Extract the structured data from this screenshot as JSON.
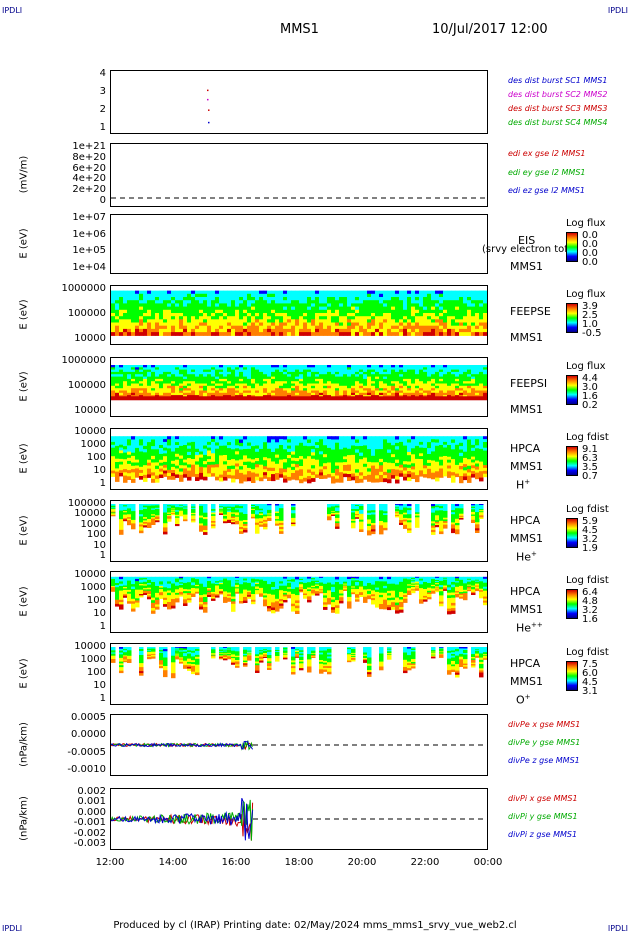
{
  "corners": {
    "tl": "IPDLI",
    "tr": "IPDLI",
    "bl": "IPDLI",
    "br": "IPDLI"
  },
  "header": {
    "mission": "MMS1",
    "datetime": "10/Jul/2017 12:00"
  },
  "footer": "Produced by cl (IRAP)   Printing date: 02/May/2024   mms_mms1_srvy_vue_web2.cl",
  "xaxis": {
    "ticks": [
      "12:00",
      "14:00",
      "16:00",
      "18:00",
      "20:00",
      "22:00",
      "00:00"
    ]
  },
  "panels": [
    {
      "id": "p1",
      "ylabel": "",
      "yticks": [
        "4",
        "3",
        "2",
        "1"
      ],
      "labels": [
        {
          "text": "des dist burst SC1 MMS1",
          "color": "#0000cc"
        },
        {
          "text": "des dist burst SC2 MMS2",
          "color": "#cc00cc"
        },
        {
          "text": "des dist burst SC3 MMS3",
          "color": "#cc0000"
        },
        {
          "text": "des dist burst SC4 MMS4",
          "color": "#00aa00"
        }
      ]
    },
    {
      "id": "p2",
      "ylabel": "(mV/m)",
      "yticks": [
        "1e+21",
        "8e+20",
        "6e+20",
        "4e+20",
        "2e+20",
        "0"
      ],
      "labels": [
        {
          "text": "edi ex gse l2 MMS1",
          "color": "#cc0000"
        },
        {
          "text": "edi ey gse l2 MMS1",
          "color": "#00aa00"
        },
        {
          "text": "edi ez gse l2 MMS1",
          "color": "#0000cc"
        }
      ]
    },
    {
      "id": "p3",
      "ylabel": "E (eV)",
      "yticks": [
        "1e+07",
        "1e+06",
        "1e+05",
        "1e+04"
      ],
      "inst": [
        "EIS",
        "MMS1"
      ],
      "extra": "(srvy electron tof)",
      "cbtitle": "Log flux",
      "cbvals": [
        "0.0",
        "0.0",
        "0.0",
        "0.0"
      ]
    },
    {
      "id": "p4",
      "ylabel": "E (eV)",
      "yticks": [
        "1000000",
        "100000",
        "10000"
      ],
      "inst": [
        "FEEPSE",
        "MMS1"
      ],
      "cbtitle": "Log flux",
      "cbvals": [
        "3.9",
        "2.5",
        "1.0",
        "-0.5"
      ]
    },
    {
      "id": "p5",
      "ylabel": "E (eV)",
      "yticks": [
        "1000000",
        "100000",
        "10000"
      ],
      "inst": [
        "FEEPSI",
        "MMS1"
      ],
      "cbtitle": "Log flux",
      "cbvals": [
        "4.4",
        "3.0",
        "1.6",
        "0.2"
      ]
    },
    {
      "id": "p6",
      "ylabel": "E (eV)",
      "yticks": [
        "10000",
        "1000",
        "100",
        "10",
        "1"
      ],
      "inst": [
        "HPCA",
        "MMS1",
        "H+"
      ],
      "cbtitle": "Log fdist",
      "cbvals": [
        "9.1",
        "6.3",
        "3.5",
        "0.7"
      ]
    },
    {
      "id": "p7",
      "ylabel": "E (eV)",
      "yticks": [
        "100000",
        "10000",
        "1000",
        "100",
        "10",
        "1"
      ],
      "inst": [
        "HPCA",
        "MMS1",
        "He+"
      ],
      "cbtitle": "Log fdist",
      "cbvals": [
        "5.9",
        "4.5",
        "3.2",
        "1.9"
      ]
    },
    {
      "id": "p8",
      "ylabel": "E (eV)",
      "yticks": [
        "10000",
        "1000",
        "100",
        "10",
        "1"
      ],
      "inst": [
        "HPCA",
        "MMS1",
        "He++"
      ],
      "cbtitle": "Log fdist",
      "cbvals": [
        "6.4",
        "4.8",
        "3.2",
        "1.6"
      ]
    },
    {
      "id": "p9",
      "ylabel": "E (eV)",
      "yticks": [
        "10000",
        "1000",
        "100",
        "10",
        "1"
      ],
      "inst": [
        "HPCA",
        "MMS1",
        "O+"
      ],
      "cbtitle": "Log fdist",
      "cbvals": [
        "7.5",
        "6.0",
        "4.5",
        "3.1"
      ]
    },
    {
      "id": "p10",
      "ylabel": "(nPa/km)",
      "yticks": [
        "0.0005",
        "0.0000",
        "-0.0005",
        "-0.0010"
      ],
      "labels": [
        {
          "text": "divPe x gse MMS1",
          "color": "#cc0000"
        },
        {
          "text": "divPe y gse MMS1",
          "color": "#00aa00"
        },
        {
          "text": "divPe z gse MMS1",
          "color": "#0000cc"
        }
      ]
    },
    {
      "id": "p11",
      "ylabel": "(nPa/km)",
      "yticks": [
        "0.002",
        "0.001",
        "0.000",
        "-0.001",
        "-0.002",
        "-0.003"
      ],
      "labels": [
        {
          "text": "divPi x gse MMS1",
          "color": "#cc0000"
        },
        {
          "text": "divPi y gse MMS1",
          "color": "#00aa00"
        },
        {
          "text": "divPi z gse MMS1",
          "color": "#0000cc"
        }
      ]
    }
  ],
  "chart_data": {
    "type": "heatmap",
    "title": "MMS1",
    "time_range": [
      "10/Jul/2017 12:00",
      "11/Jul/2017 00:00"
    ],
    "xlabel": "",
    "note_series": [
      {
        "name": "divPe x gse MMS1",
        "values_range": [
          -0.001,
          0.0005
        ]
      },
      {
        "name": "divPi x gse MMS1",
        "values_range": [
          -0.003,
          0.002
        ]
      }
    ]
  }
}
